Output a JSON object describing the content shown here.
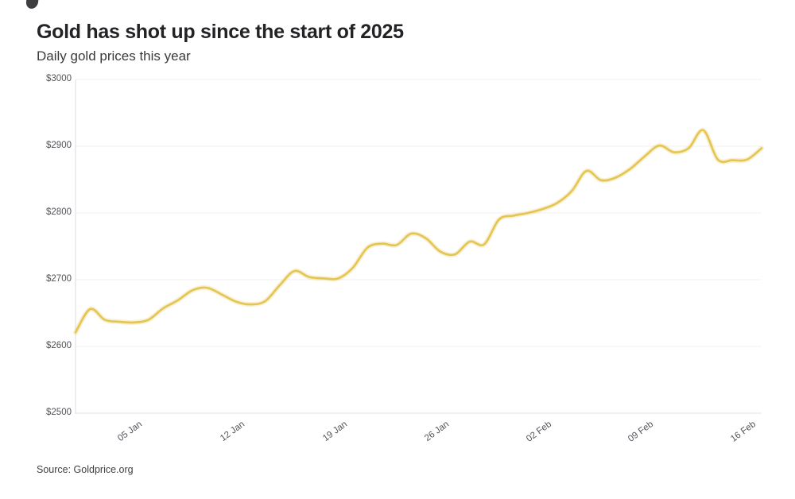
{
  "header": {
    "title": "Gold has shot up since the start of 2025",
    "subtitle": "Daily gold prices this year"
  },
  "footer": {
    "source": "Source: Goldprice.org"
  },
  "chart_data": {
    "type": "line",
    "title": "Gold has shot up since the start of 2025",
    "subtitle": "Daily gold prices this year",
    "source": "Source: Goldprice.org",
    "line_color": "#e5c551",
    "grid": true,
    "legend_position": "none",
    "ylim": [
      2500,
      3000
    ],
    "y_ticks": [
      {
        "label": "$2500",
        "value": 2500
      },
      {
        "label": "$2600",
        "value": 2600
      },
      {
        "label": "$2700",
        "value": 2700
      },
      {
        "label": "$2800",
        "value": 2800
      },
      {
        "label": "$2900",
        "value": 2900
      },
      {
        "label": "$3000",
        "value": 3000
      }
    ],
    "x_ticks": [
      {
        "label": "05 Jan",
        "day": 4
      },
      {
        "label": "12 Jan",
        "day": 11
      },
      {
        "label": "19 Jan",
        "day": 18
      },
      {
        "label": "26 Jan",
        "day": 25
      },
      {
        "label": "02 Feb",
        "day": 32
      },
      {
        "label": "09 Feb",
        "day": 39
      },
      {
        "label": "16 Feb",
        "day": 46
      }
    ],
    "x": [
      "01 Jan",
      "02 Jan",
      "03 Jan",
      "04 Jan",
      "05 Jan",
      "06 Jan",
      "07 Jan",
      "08 Jan",
      "09 Jan",
      "10 Jan",
      "11 Jan",
      "12 Jan",
      "13 Jan",
      "14 Jan",
      "15 Jan",
      "16 Jan",
      "17 Jan",
      "18 Jan",
      "19 Jan",
      "20 Jan",
      "21 Jan",
      "22 Jan",
      "23 Jan",
      "24 Jan",
      "25 Jan",
      "26 Jan",
      "27 Jan",
      "28 Jan",
      "29 Jan",
      "30 Jan",
      "31 Jan",
      "01 Feb",
      "02 Feb",
      "03 Feb",
      "04 Feb",
      "05 Feb",
      "06 Feb",
      "07 Feb",
      "08 Feb",
      "09 Feb",
      "10 Feb",
      "11 Feb",
      "12 Feb",
      "13 Feb",
      "14 Feb",
      "15 Feb",
      "16 Feb",
      "17 Feb"
    ],
    "values": [
      2621,
      2656,
      2640,
      2637,
      2636,
      2640,
      2657,
      2669,
      2684,
      2688,
      2678,
      2667,
      2663,
      2668,
      2692,
      2713,
      2704,
      2702,
      2702,
      2718,
      2748,
      2754,
      2752,
      2769,
      2762,
      2742,
      2738,
      2757,
      2753,
      2790,
      2796,
      2800,
      2806,
      2815,
      2833,
      2863,
      2849,
      2853,
      2866,
      2885,
      2901,
      2891,
      2897,
      2924,
      2880,
      2879,
      2880,
      2897
    ]
  }
}
